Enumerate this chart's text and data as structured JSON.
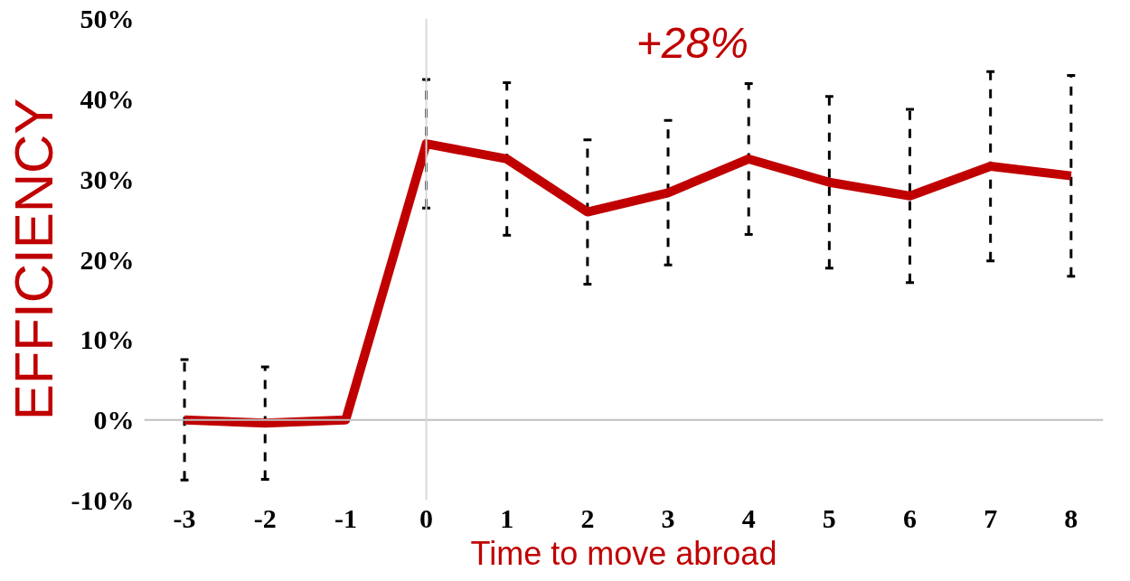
{
  "chart_data": {
    "type": "line",
    "xlabel": "Time to move abroad",
    "ylabel": "EFFICIENCY",
    "annotations": [
      "+28%"
    ],
    "x": [
      -3,
      -2,
      -1,
      0,
      1,
      2,
      3,
      4,
      5,
      6,
      7,
      8
    ],
    "series": [
      {
        "color": "#c00000",
        "values": [
          0,
          -0.4,
          0,
          34.4,
          32.5,
          25.9,
          28.3,
          32.5,
          29.6,
          27.9,
          31.6,
          30.4
        ],
        "errors": [
          7.5,
          7,
          null,
          8,
          9.5,
          9,
          9,
          9.4,
          10.7,
          10.8,
          11.8,
          12.5
        ]
      }
    ],
    "xlim": [
      -3.5,
      8.4
    ],
    "ylim": [
      -10,
      50
    ],
    "xticks": [
      -3,
      -2,
      -1,
      0,
      1,
      2,
      3,
      4,
      5,
      6,
      7,
      8
    ],
    "yticks": [
      {
        "value": -10,
        "label": "-10%"
      },
      {
        "value": 0,
        "label": "0%"
      },
      {
        "value": 10,
        "label": "10%"
      },
      {
        "value": 20,
        "label": "20%"
      },
      {
        "value": 30,
        "label": "30%"
      },
      {
        "value": 40,
        "label": "40%"
      },
      {
        "value": 50,
        "label": "50%"
      }
    ],
    "ref_lines": [
      {
        "axis": "y",
        "value": 0,
        "color": "#bfbfbf"
      },
      {
        "axis": "x",
        "value": 0,
        "color": "#d9d9d9"
      }
    ],
    "grid": false,
    "marker": "none",
    "line_style": "solid"
  }
}
